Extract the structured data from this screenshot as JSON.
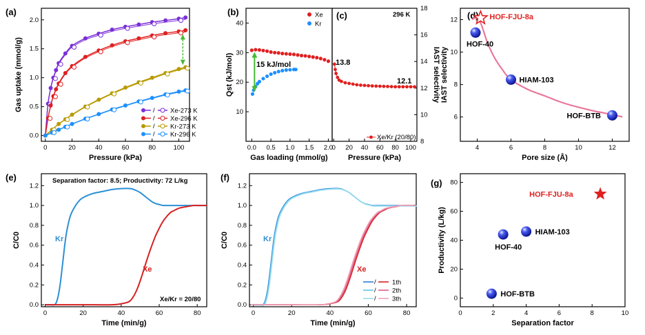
{
  "chart_data": [
    {
      "id": "a",
      "panel_label": "(a)",
      "type": "line",
      "xlabel": "Pressure (kPa)",
      "ylabel": "Gas uptake (mmol/g)",
      "xlim": [
        -3,
        108
      ],
      "ylim": [
        -0.1,
        2.2
      ],
      "xticks": [
        0,
        20,
        40,
        60,
        80,
        100
      ],
      "yticks": [
        0.0,
        0.5,
        1.0,
        1.5,
        2.0
      ],
      "ytick_labels": [
        "0.0",
        "0.5",
        "1.0",
        "1.5",
        "2.0"
      ],
      "legend": "bottom-right",
      "series": [
        {
          "name": "Xe-273 K",
          "color": "#7b2fd6",
          "x": [
            0,
            2,
            4,
            6,
            8,
            10,
            15,
            20,
            30,
            40,
            50,
            60,
            70,
            80,
            90,
            100,
            105
          ],
          "y": [
            0,
            0.55,
            0.82,
            1.0,
            1.13,
            1.25,
            1.42,
            1.55,
            1.68,
            1.76,
            1.83,
            1.88,
            1.92,
            1.96,
            1.99,
            2.02,
            2.04
          ]
        },
        {
          "name": "Xe-296 K",
          "color": "#e02020",
          "x": [
            0,
            2,
            4,
            6,
            8,
            10,
            15,
            20,
            30,
            40,
            50,
            60,
            70,
            80,
            90,
            100,
            105
          ],
          "y": [
            0,
            0.3,
            0.52,
            0.68,
            0.8,
            0.9,
            1.08,
            1.2,
            1.36,
            1.47,
            1.56,
            1.63,
            1.68,
            1.73,
            1.77,
            1.8,
            1.82
          ]
        },
        {
          "name": "Kr-273 K",
          "color": "#b89a00",
          "x": [
            0,
            5,
            10,
            15,
            20,
            30,
            40,
            50,
            60,
            70,
            80,
            90,
            100,
            105
          ],
          "y": [
            0,
            0.1,
            0.2,
            0.28,
            0.36,
            0.5,
            0.62,
            0.73,
            0.83,
            0.92,
            1.0,
            1.08,
            1.15,
            1.18
          ]
        },
        {
          "name": "Kr-296 K",
          "color": "#1e90ff",
          "x": [
            0,
            5,
            10,
            15,
            20,
            30,
            40,
            50,
            60,
            70,
            80,
            90,
            100,
            105
          ],
          "y": [
            0,
            0.05,
            0.1,
            0.15,
            0.2,
            0.29,
            0.37,
            0.45,
            0.52,
            0.59,
            0.65,
            0.71,
            0.76,
            0.78
          ]
        }
      ]
    },
    {
      "id": "b",
      "panel_label": "(b)",
      "type": "scatter",
      "xlabel": "Gas loading (mmol/g)",
      "ylabel": "Qst (kJ/mol)",
      "xlim": [
        -0.15,
        2.1
      ],
      "ylim": [
        0,
        45
      ],
      "xticks": [
        0.0,
        0.5,
        1.0,
        1.5,
        2.0
      ],
      "xtick_labels": [
        "0.0",
        "0.5",
        "1.0",
        "1.5",
        "2.0"
      ],
      "yticks": [
        10,
        20,
        30,
        40
      ],
      "annotations": [
        "15 kJ/mol"
      ],
      "legend": "top-right",
      "series": [
        {
          "name": "Xe",
          "color": "#e02020",
          "x": [
            0.0,
            0.1,
            0.2,
            0.3,
            0.4,
            0.5,
            0.6,
            0.7,
            0.8,
            0.9,
            1.0,
            1.1,
            1.2,
            1.3,
            1.4,
            1.5,
            1.6,
            1.7,
            1.8,
            1.9,
            2.0
          ],
          "y": [
            30.8,
            31.0,
            30.9,
            30.7,
            30.5,
            30.2,
            30.0,
            29.9,
            29.7,
            29.6,
            29.5,
            29.4,
            29.2,
            29.0,
            28.9,
            28.7,
            28.5,
            28.3,
            28.0,
            27.6,
            27.1
          ]
        },
        {
          "name": "Kr",
          "color": "#1e90ff",
          "x": [
            0.02,
            0.05,
            0.1,
            0.15,
            0.2,
            0.3,
            0.4,
            0.5,
            0.6,
            0.7,
            0.8,
            0.9,
            1.0,
            1.1,
            1.15
          ],
          "y": [
            16.0,
            17.3,
            18.5,
            19.5,
            20.2,
            21.2,
            22.0,
            22.7,
            23.2,
            23.6,
            23.9,
            24.1,
            24.2,
            24.3,
            24.3
          ]
        }
      ]
    },
    {
      "id": "c",
      "panel_label": "(c)",
      "type": "scatter",
      "xlabel": "Pressure (kPa)",
      "ylabel": "IAST selectivity",
      "title": "296 K",
      "xlim": [
        -2,
        108
      ],
      "ylim": [
        8,
        18
      ],
      "xticks": [
        0,
        20,
        40,
        60,
        80,
        100
      ],
      "yticks": [
        8,
        10,
        12,
        14,
        16,
        18
      ],
      "annotations": [
        "13.8",
        "12.1"
      ],
      "legend": "bottom-right",
      "series": [
        {
          "name": "Xe/Kr (20/80)",
          "color": "#e02020",
          "x": [
            1,
            2,
            3,
            5,
            7,
            10,
            15,
            20,
            25,
            30,
            35,
            40,
            45,
            50,
            55,
            60,
            65,
            70,
            75,
            80,
            85,
            90,
            95,
            100,
            105
          ],
          "y": [
            13.8,
            13.4,
            13.1,
            12.8,
            12.6,
            12.5,
            12.4,
            12.35,
            12.3,
            12.25,
            12.22,
            12.2,
            12.18,
            12.16,
            12.15,
            12.14,
            12.13,
            12.12,
            12.11,
            12.1,
            12.1,
            12.1,
            12.1,
            12.1,
            12.1
          ]
        }
      ]
    },
    {
      "id": "d",
      "panel_label": "(d)",
      "type": "scatter",
      "xlabel": "Pore size (Å)",
      "ylabel": "IAST selectivity",
      "xlim": [
        3,
        13
      ],
      "ylim": [
        4.5,
        12.7
      ],
      "xticks": [
        4,
        6,
        8,
        10,
        12
      ],
      "yticks": [
        6,
        8,
        10,
        12
      ],
      "points": [
        {
          "name": "HOF-FJU-8a",
          "x": 4.2,
          "y": 12.1,
          "marker": "star",
          "color": "#e02020"
        },
        {
          "name": "HOF-40",
          "x": 3.9,
          "y": 11.2,
          "marker": "sphere",
          "color": "#2233cc"
        },
        {
          "name": "HIAM-103",
          "x": 6.0,
          "y": 8.3,
          "marker": "sphere",
          "color": "#2233cc"
        },
        {
          "name": "HOF-BTB",
          "x": 12.0,
          "y": 6.1,
          "marker": "sphere",
          "color": "#2233cc"
        }
      ],
      "fit_curve": {
        "color": "#e8779a",
        "x": [
          3.7,
          3.9,
          4.2,
          4.6,
          5.0,
          5.5,
          6.0,
          7,
          8,
          9,
          10,
          11,
          12,
          12.6
        ],
        "y": [
          12.0,
          12.1,
          11.8,
          10.6,
          9.7,
          8.9,
          8.3,
          7.7,
          7.3,
          6.9,
          6.6,
          6.35,
          6.15,
          6.0
        ]
      }
    },
    {
      "id": "e",
      "panel_label": "(e)",
      "type": "line",
      "xlabel": "Time (min/g)",
      "ylabel": "C/C0",
      "xlim": [
        -2,
        85
      ],
      "ylim": [
        -0.02,
        1.32
      ],
      "xticks": [
        0,
        20,
        40,
        60,
        80
      ],
      "yticks": [
        0.0,
        0.2,
        0.4,
        0.6,
        0.8,
        1.0,
        1.2
      ],
      "ytick_labels": [
        "0.0",
        "0.2",
        "0.4",
        "0.6",
        "0.8",
        "1.0",
        "1.2"
      ],
      "annotations": [
        "Separation factor: 8.5;  Productivity: 72 L/kg",
        "Xe/Kr = 20/80"
      ],
      "series": [
        {
          "name": "Kr",
          "color": "#2b8fd6",
          "x": [
            0,
            3,
            5,
            6,
            7,
            8,
            9,
            10,
            11,
            12,
            13,
            14,
            16,
            18,
            20,
            25,
            30,
            35,
            40,
            45,
            48,
            50,
            52,
            54,
            56,
            58,
            60,
            62,
            65,
            70,
            75,
            80,
            85
          ],
          "y": [
            0,
            0,
            0,
            0.03,
            0.1,
            0.22,
            0.38,
            0.55,
            0.7,
            0.8,
            0.88,
            0.93,
            1.0,
            1.05,
            1.08,
            1.12,
            1.14,
            1.16,
            1.17,
            1.17,
            1.15,
            1.13,
            1.1,
            1.07,
            1.04,
            1.02,
            1.01,
            1.0,
            1.0,
            1.0,
            1.0,
            1.0,
            1.0
          ]
        },
        {
          "name": "Xe",
          "color": "#d62020",
          "x": [
            0,
            20,
            35,
            40,
            44,
            46,
            48,
            50,
            52,
            54,
            56,
            58,
            60,
            62,
            64,
            66,
            68,
            70,
            72,
            75,
            78,
            80,
            85
          ],
          "y": [
            0,
            0,
            0,
            0.01,
            0.03,
            0.07,
            0.14,
            0.24,
            0.36,
            0.48,
            0.59,
            0.69,
            0.77,
            0.84,
            0.89,
            0.93,
            0.95,
            0.97,
            0.98,
            0.99,
            1.0,
            1.0,
            1.0
          ]
        }
      ]
    },
    {
      "id": "f",
      "panel_label": "(f)",
      "type": "line",
      "xlabel": "Time (min/g)",
      "ylabel": "C/C0",
      "xlim": [
        -2,
        85
      ],
      "ylim": [
        -0.02,
        1.32
      ],
      "xticks": [
        0,
        20,
        40,
        60,
        80
      ],
      "yticks": [
        0.0,
        0.2,
        0.4,
        0.6,
        0.8,
        1.0,
        1.2
      ],
      "ytick_labels": [
        "0.0",
        "0.2",
        "0.4",
        "0.6",
        "0.8",
        "1.0",
        "1.2"
      ],
      "curve_labels": [
        "Kr",
        "Xe"
      ],
      "legend": "bottom-right",
      "legend_entries": [
        "1th",
        "2th",
        "3th"
      ],
      "cycle_colors": {
        "kr": [
          "#2b7fd6",
          "#5fc4e8",
          "#9adcef"
        ],
        "xe": [
          "#d62020",
          "#e05a8a",
          "#f0a0b8"
        ]
      },
      "cycle_shifts": [
        0,
        0.6,
        1.2
      ]
    },
    {
      "id": "g",
      "panel_label": "(g)",
      "type": "scatter",
      "xlabel": "Separation factor",
      "ylabel": "Productivity (L/kg)",
      "xlim": [
        0,
        10
      ],
      "ylim": [
        -6,
        86
      ],
      "xticks": [
        0,
        2,
        4,
        6,
        8,
        10
      ],
      "yticks": [
        0,
        20,
        40,
        60,
        80
      ],
      "points": [
        {
          "name": "HOF-FJU-8a",
          "x": 8.5,
          "y": 72,
          "marker": "star",
          "color": "#e02020"
        },
        {
          "name": "HOF-40",
          "x": 2.6,
          "y": 44,
          "marker": "sphere",
          "color": "#2233cc"
        },
        {
          "name": "HIAM-103",
          "x": 4.0,
          "y": 46,
          "marker": "sphere",
          "color": "#2233cc"
        },
        {
          "name": "HOF-BTB",
          "x": 1.9,
          "y": 3,
          "marker": "sphere",
          "color": "#2233cc"
        }
      ]
    }
  ]
}
